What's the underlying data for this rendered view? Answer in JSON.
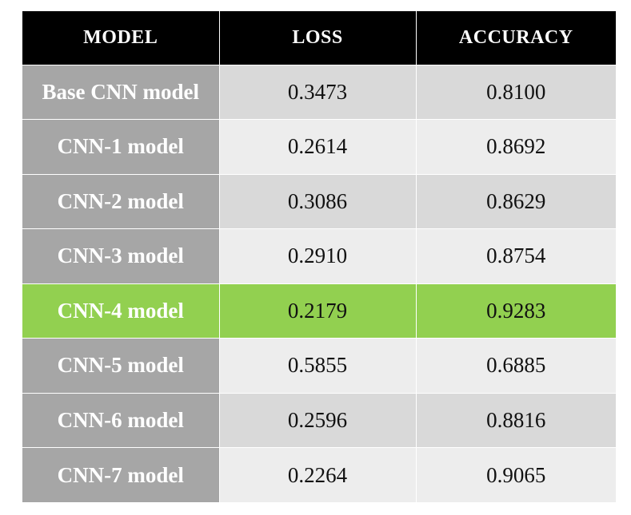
{
  "table": {
    "headers": {
      "model": "MODEL",
      "loss": "LOSS",
      "accuracy": "ACCURACY"
    },
    "highlight_color": "#92d050",
    "rows": [
      {
        "model": "Base CNN model",
        "loss": "0.3473",
        "accuracy": "0.8100"
      },
      {
        "model": "CNN-1 model",
        "loss": "0.2614",
        "accuracy": "0.8692"
      },
      {
        "model": "CNN-2 model",
        "loss": "0.3086",
        "accuracy": "0.8629"
      },
      {
        "model": "CNN-3 model",
        "loss": "0.2910",
        "accuracy": "0.8754"
      },
      {
        "model": "CNN-4 model",
        "loss": "0.2179",
        "accuracy": "0.9283"
      },
      {
        "model": "CNN-5 model",
        "loss": "0.5855",
        "accuracy": "0.6885"
      },
      {
        "model": "CNN-6 model",
        "loss": "0.2596",
        "accuracy": "0.8816"
      },
      {
        "model": "CNN-7 model",
        "loss": "0.2264",
        "accuracy": "0.9065"
      }
    ]
  }
}
